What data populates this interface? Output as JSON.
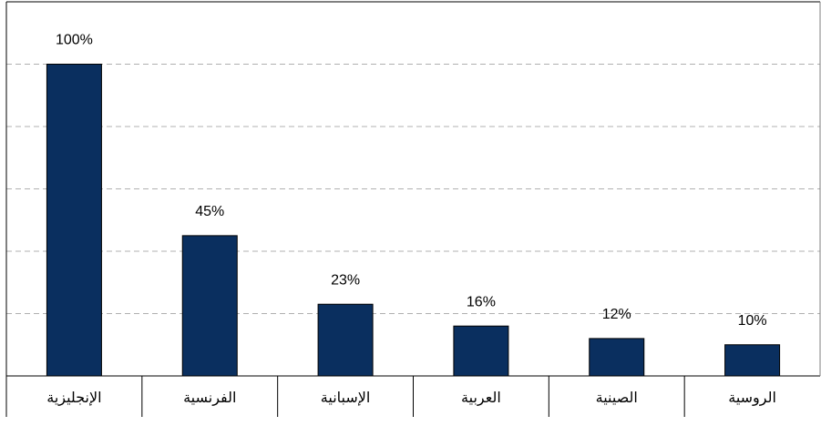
{
  "chart_data": {
    "type": "bar",
    "categories": [
      "الإنجليزية",
      "الفرنسية",
      "الإسبانية",
      "العربية",
      "الصينية",
      "الروسية"
    ],
    "values": [
      100,
      45,
      23,
      16,
      12,
      10
    ],
    "value_labels": [
      "100%",
      "45%",
      "23%",
      "16%",
      "12%",
      "10%"
    ],
    "color": "#0a2f5f",
    "ylim": [
      0,
      120
    ],
    "yticks": [
      0,
      20,
      40,
      60,
      80,
      100,
      120
    ],
    "grid": true
  }
}
